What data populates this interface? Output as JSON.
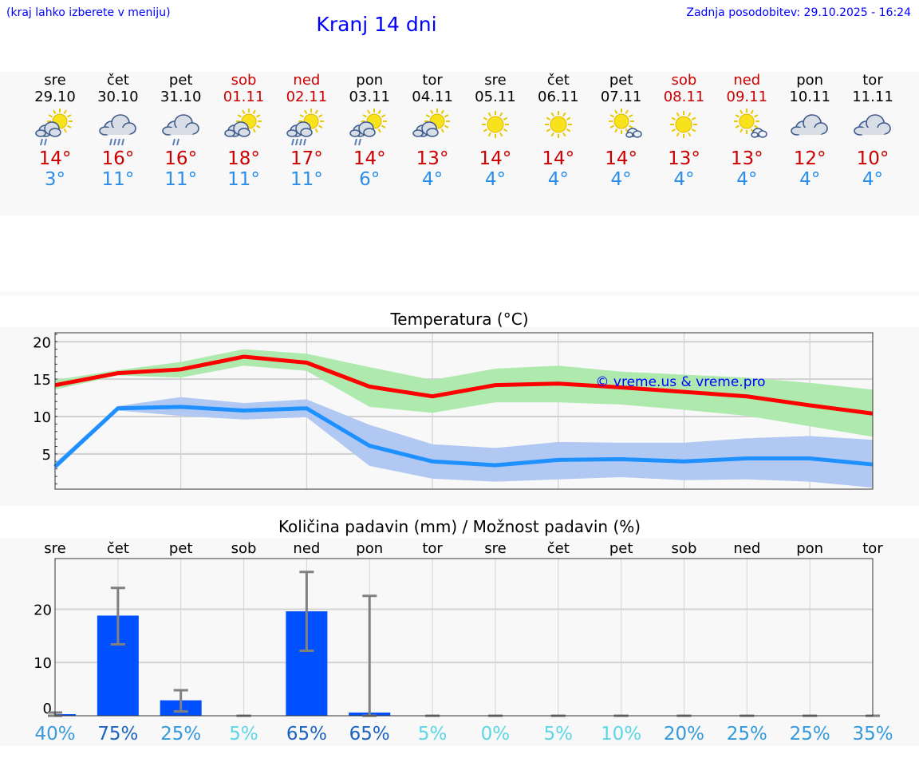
{
  "header": {
    "hint": "(kraj lahko izberete v meniju)",
    "title": "Kranj 14 dni",
    "updated": "Zadnja posodobitev: 29.10.2025 - 16:24"
  },
  "days": [
    {
      "name": "sre",
      "date": "29.10",
      "weekend": false,
      "icon": "sun-cloud-rain",
      "max": "14°",
      "min": "3°"
    },
    {
      "name": "čet",
      "date": "30.10",
      "weekend": false,
      "icon": "cloud-rain-heavy",
      "max": "16°",
      "min": "11°"
    },
    {
      "name": "pet",
      "date": "31.10",
      "weekend": false,
      "icon": "cloud-rain",
      "max": "16°",
      "min": "11°"
    },
    {
      "name": "sob",
      "date": "01.11",
      "weekend": true,
      "icon": "sun-cloud",
      "max": "18°",
      "min": "11°"
    },
    {
      "name": "ned",
      "date": "02.11",
      "weekend": true,
      "icon": "sun-cloud-rain-heavy",
      "max": "17°",
      "min": "11°"
    },
    {
      "name": "pon",
      "date": "03.11",
      "weekend": false,
      "icon": "sun-cloud-rain",
      "max": "14°",
      "min": "6°"
    },
    {
      "name": "tor",
      "date": "04.11",
      "weekend": false,
      "icon": "sun-cloud",
      "max": "13°",
      "min": "4°"
    },
    {
      "name": "sre",
      "date": "05.11",
      "weekend": false,
      "icon": "sun",
      "max": "14°",
      "min": "4°"
    },
    {
      "name": "čet",
      "date": "06.11",
      "weekend": false,
      "icon": "sun",
      "max": "14°",
      "min": "4°"
    },
    {
      "name": "pet",
      "date": "07.11",
      "weekend": false,
      "icon": "sun-small-cloud",
      "max": "14°",
      "min": "4°"
    },
    {
      "name": "sob",
      "date": "08.11",
      "weekend": true,
      "icon": "sun",
      "max": "13°",
      "min": "4°"
    },
    {
      "name": "ned",
      "date": "09.11",
      "weekend": true,
      "icon": "sun-small-cloud",
      "max": "13°",
      "min": "4°"
    },
    {
      "name": "pon",
      "date": "10.11",
      "weekend": false,
      "icon": "cloud",
      "max": "12°",
      "min": "4°"
    },
    {
      "name": "tor",
      "date": "11.11",
      "weekend": false,
      "icon": "cloud",
      "max": "10°",
      "min": "4°"
    }
  ],
  "colors": {
    "max": "#ff0000",
    "min": "#1e90ff",
    "maxBand": "#aeeaae",
    "minBand": "#b0c8f2",
    "bar": "#0050ff",
    "err": "#808080"
  },
  "chart_data": [
    {
      "type": "line",
      "title": "Temperatura (°C)",
      "watermark": "© vreme.us & vreme.pro",
      "ylim": [
        0.3,
        21.2
      ],
      "yticks": [
        5,
        10,
        15,
        20
      ],
      "grid": true,
      "x": [
        0,
        1,
        2,
        3,
        4,
        5,
        6,
        7,
        8,
        9,
        10,
        11,
        12,
        13
      ],
      "series": [
        {
          "name": "max",
          "values": [
            14.2,
            15.8,
            16.3,
            18.0,
            17.2,
            14.0,
            12.7,
            14.2,
            14.4,
            13.9,
            13.3,
            12.7,
            11.5,
            10.4
          ],
          "band_low": [
            13.6,
            15.5,
            15.2,
            16.8,
            16.1,
            11.3,
            10.5,
            11.9,
            11.9,
            11.6,
            10.9,
            10.1,
            8.7,
            7.3
          ],
          "band_high": [
            14.9,
            16.2,
            17.3,
            19.0,
            18.4,
            16.6,
            14.9,
            16.4,
            16.8,
            16.0,
            15.6,
            15.2,
            14.5,
            13.6
          ]
        },
        {
          "name": "min",
          "values": [
            3.3,
            11.1,
            11.3,
            10.8,
            11.1,
            6.1,
            4.0,
            3.5,
            4.2,
            4.3,
            4.0,
            4.4,
            4.4,
            3.6
          ],
          "band_low": [
            2.9,
            10.8,
            10.1,
            9.6,
            9.9,
            3.4,
            1.7,
            1.3,
            1.6,
            1.9,
            1.5,
            1.6,
            1.3,
            0.5
          ],
          "band_high": [
            3.8,
            11.4,
            12.6,
            11.8,
            12.3,
            8.9,
            6.3,
            5.8,
            6.6,
            6.5,
            6.5,
            7.1,
            7.4,
            6.9
          ]
        }
      ]
    },
    {
      "type": "bar",
      "title": "Količina padavin (mm) / Možnost padavin (%)",
      "ylim": [
        0,
        29.5
      ],
      "yticks": [
        0,
        10,
        20
      ],
      "grid": true,
      "categories": [
        "sre",
        "čet",
        "pet",
        "sob",
        "ned",
        "pon",
        "tor",
        "sre",
        "čet",
        "pet",
        "sob",
        "ned",
        "pon",
        "tor"
      ],
      "values": [
        0.3,
        18.8,
        2.9,
        0,
        19.6,
        0.6,
        0,
        0,
        0,
        0,
        0,
        0,
        0,
        0
      ],
      "err_low": [
        0,
        13.4,
        0.8,
        0,
        12.2,
        0,
        0,
        0,
        0,
        0,
        0,
        0,
        0,
        0
      ],
      "err_high": [
        0.6,
        24.0,
        4.8,
        0,
        27.0,
        22.5,
        0,
        0,
        0,
        0,
        0,
        0,
        0,
        0
      ],
      "chance": [
        "40%",
        "75%",
        "25%",
        "5%",
        "65%",
        "65%",
        "5%",
        "0%",
        "5%",
        "10%",
        "20%",
        "25%",
        "25%",
        "35%"
      ],
      "chance_colors": [
        "#3a9ad9",
        "#1a64c0",
        "#3399dd",
        "#5cd6e6",
        "#1a64c0",
        "#1a64c0",
        "#5cd6e6",
        "#5cd6e6",
        "#5cd6e6",
        "#5cd6e6",
        "#3399dd",
        "#3399dd",
        "#3399dd",
        "#3399dd"
      ]
    }
  ]
}
